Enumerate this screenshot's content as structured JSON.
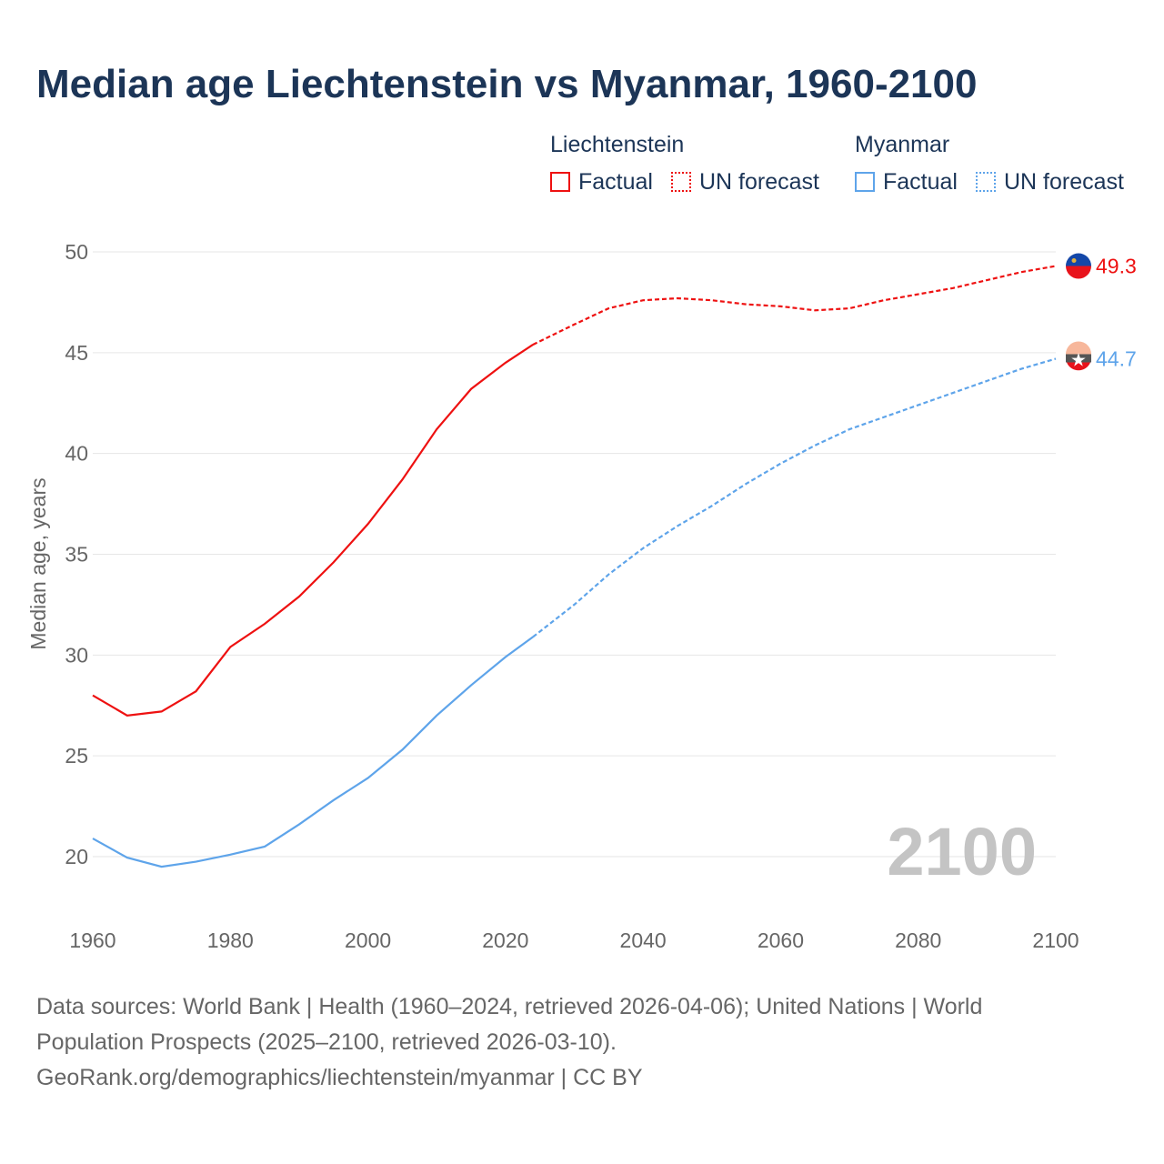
{
  "chart_data": {
    "type": "line",
    "title": "Median age Liechtenstein vs Myanmar, 1960-2100",
    "xlabel": "",
    "ylabel": "Median age, years",
    "xlim": [
      1960,
      2100
    ],
    "ylim": [
      20,
      50
    ],
    "xticks": [
      "1960",
      "1980",
      "2000",
      "2020",
      "2040",
      "2060",
      "2080",
      "2100"
    ],
    "yticks": [
      "20",
      "25",
      "30",
      "35",
      "40",
      "45",
      "50"
    ],
    "legend": {
      "groups": [
        "Liechtenstein",
        "Myanmar"
      ],
      "factual": "Factual",
      "forecast": "UN forecast"
    },
    "year_label": "2100",
    "series": [
      {
        "name": "Liechtenstein",
        "color": "#ee1111",
        "end_label": "49.3",
        "factual": {
          "x": [
            1960,
            1965,
            1970,
            1975,
            1980,
            1985,
            1990,
            1995,
            2000,
            2005,
            2010,
            2015,
            2020,
            2024
          ],
          "y": [
            28.0,
            27.0,
            27.2,
            28.2,
            30.4,
            31.55,
            32.9,
            34.6,
            36.5,
            38.7,
            41.2,
            43.2,
            44.5,
            45.4
          ]
        },
        "forecast": {
          "x": [
            2024,
            2030,
            2035,
            2040,
            2045,
            2050,
            2055,
            2060,
            2065,
            2070,
            2075,
            2080,
            2085,
            2090,
            2095,
            2100
          ],
          "y": [
            45.4,
            46.4,
            47.2,
            47.6,
            47.7,
            47.6,
            47.4,
            47.3,
            47.1,
            47.2,
            47.6,
            47.9,
            48.2,
            48.6,
            49.0,
            49.3
          ]
        }
      },
      {
        "name": "Myanmar",
        "color": "#5ea4ea",
        "end_label": "44.7",
        "factual": {
          "x": [
            1960,
            1965,
            1970,
            1975,
            1980,
            1985,
            1990,
            1995,
            2000,
            2005,
            2010,
            2015,
            2020,
            2024
          ],
          "y": [
            20.9,
            19.95,
            19.5,
            19.75,
            20.1,
            20.5,
            21.6,
            22.8,
            23.9,
            25.3,
            27.0,
            28.5,
            29.9,
            30.9
          ]
        },
        "forecast": {
          "x": [
            2024,
            2030,
            2035,
            2040,
            2045,
            2050,
            2055,
            2060,
            2065,
            2070,
            2075,
            2080,
            2085,
            2090,
            2095,
            2100
          ],
          "y": [
            30.9,
            32.5,
            34.0,
            35.3,
            36.4,
            37.4,
            38.5,
            39.5,
            40.4,
            41.2,
            41.8,
            42.4,
            43.0,
            43.6,
            44.2,
            44.7
          ]
        }
      }
    ]
  },
  "source": {
    "line1": "Data sources: World Bank | Health (1960–2024, retrieved 2026-04-06); United Nations | World",
    "line2": "Population Prospects (2025–2100, retrieved 2026-03-10).",
    "line3": "GeoRank.org/demographics/liechtenstein/myanmar | CC BY"
  }
}
